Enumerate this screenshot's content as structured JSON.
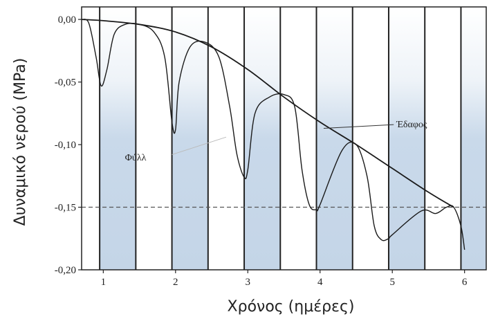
{
  "chart_data": {
    "type": "line",
    "xlabel": "Χρόνος (ημέρες)",
    "ylabel": "Δυναμικό νερού (MPa)",
    "xlim": [
      0.7,
      6.3
    ],
    "ylim": [
      -0.2,
      0.01
    ],
    "x_ticks": [
      "1",
      "2",
      "3",
      "4",
      "5",
      "6"
    ],
    "y_ticks": [
      "0,00",
      "-0,05",
      "-0,10",
      "-0,15",
      "-0,20"
    ],
    "reference_line": {
      "y": -0.15,
      "style": "dashed"
    },
    "night_bands": [
      [
        0.7,
        0.95
      ],
      [
        1.45,
        1.95
      ],
      [
        2.45,
        2.95
      ],
      [
        3.45,
        3.95
      ],
      [
        4.45,
        4.95
      ],
      [
        5.45,
        5.95
      ]
    ],
    "series": [
      {
        "name": "Έδαφος",
        "x": [
          0.7,
          1.0,
          1.5,
          2.0,
          2.5,
          3.0,
          3.5,
          4.0,
          4.5,
          5.0,
          5.5,
          5.85
        ],
        "y": [
          0.0,
          -0.001,
          -0.004,
          -0.01,
          -0.022,
          -0.04,
          -0.062,
          -0.082,
          -0.1,
          -0.119,
          -0.138,
          -0.15
        ]
      },
      {
        "name": "Φύλλα",
        "x": [
          0.7,
          0.8,
          0.9,
          0.97,
          1.05,
          1.15,
          1.3,
          1.5,
          1.7,
          1.85,
          1.95,
          2.0,
          2.05,
          2.2,
          2.4,
          2.6,
          2.75,
          2.85,
          2.95,
          3.0,
          3.1,
          3.3,
          3.5,
          3.65,
          3.75,
          3.85,
          3.95,
          4.0,
          4.3,
          4.5,
          4.65,
          4.75,
          4.85,
          4.95,
          5.0,
          5.4,
          5.6,
          5.75,
          5.85,
          5.95,
          6.0
        ],
        "y": [
          0.0,
          -0.003,
          -0.03,
          -0.053,
          -0.04,
          -0.012,
          -0.004,
          -0.004,
          -0.01,
          -0.03,
          -0.082,
          -0.088,
          -0.05,
          -0.022,
          -0.018,
          -0.03,
          -0.07,
          -0.108,
          -0.126,
          -0.12,
          -0.075,
          -0.062,
          -0.06,
          -0.07,
          -0.12,
          -0.148,
          -0.152,
          -0.148,
          -0.105,
          -0.1,
          -0.125,
          -0.165,
          -0.176,
          -0.175,
          -0.172,
          -0.153,
          -0.155,
          -0.15,
          -0.15,
          -0.165,
          -0.184
        ]
      }
    ],
    "annotations": [
      {
        "text": "Έδαφος",
        "x": 5.0,
        "y": -0.084
      },
      {
        "text": "Φύλλ",
        "x": 1.3,
        "y": -0.11
      }
    ]
  }
}
